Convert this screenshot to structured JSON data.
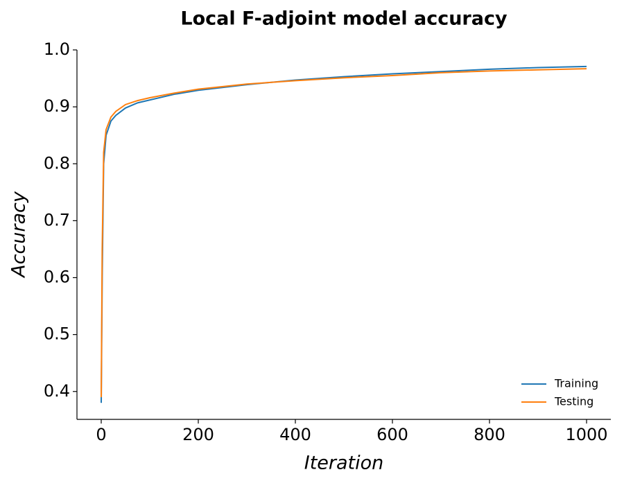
{
  "chart_data": {
    "type": "line",
    "title": "Local F-adjoint model accuracy",
    "x_label": "Iteration",
    "y_label": "Accuracy",
    "x": [
      0,
      2,
      5,
      10,
      20,
      30,
      50,
      75,
      100,
      150,
      200,
      300,
      400,
      500,
      600,
      700,
      800,
      900,
      1000
    ],
    "series": [
      {
        "name": "Training",
        "color": "#1f77b4",
        "values": [
          0.38,
          0.6,
          0.8,
          0.85,
          0.875,
          0.885,
          0.898,
          0.907,
          0.912,
          0.922,
          0.929,
          0.939,
          0.947,
          0.953,
          0.958,
          0.962,
          0.966,
          0.969,
          0.971
        ]
      },
      {
        "name": "Testing",
        "color": "#ff7f0e",
        "values": [
          0.39,
          0.65,
          0.82,
          0.86,
          0.882,
          0.892,
          0.904,
          0.911,
          0.916,
          0.924,
          0.931,
          0.94,
          0.946,
          0.951,
          0.955,
          0.96,
          0.963,
          0.965,
          0.967
        ]
      }
    ],
    "xlim": [
      -50,
      1050
    ],
    "xticks": [
      0,
      200,
      400,
      600,
      800,
      1000
    ],
    "ylim": [
      0.351,
      1.0
    ],
    "yticks": [
      0.4,
      0.5,
      0.6,
      0.7,
      0.8,
      0.9,
      {
        "value": 1.0,
        "label": "1.0"
      }
    ],
    "grid": false,
    "legend": "lower right"
  }
}
